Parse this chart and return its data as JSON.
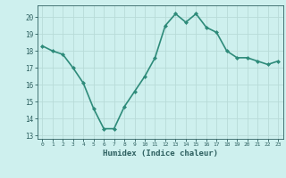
{
  "x": [
    0,
    1,
    2,
    3,
    4,
    5,
    6,
    7,
    8,
    9,
    10,
    11,
    12,
    13,
    14,
    15,
    16,
    17,
    18,
    19,
    20,
    21,
    22,
    23
  ],
  "y": [
    18.3,
    18.0,
    17.8,
    17.0,
    16.1,
    14.6,
    13.4,
    13.4,
    14.7,
    15.6,
    16.5,
    17.6,
    19.5,
    20.2,
    19.7,
    20.2,
    19.4,
    19.1,
    18.0,
    17.6,
    17.6,
    17.4,
    17.2,
    17.4
  ],
  "line_color": "#2e8b7a",
  "marker": "D",
  "marker_size": 2.0,
  "bg_color": "#cef0ee",
  "grid_color": "#b8dbd8",
  "xlabel": "Humidex (Indice chaleur)",
  "ylim": [
    12.8,
    20.7
  ],
  "yticks": [
    13,
    14,
    15,
    16,
    17,
    18,
    19,
    20
  ],
  "xticks": [
    0,
    1,
    2,
    3,
    4,
    5,
    6,
    7,
    8,
    9,
    10,
    11,
    12,
    13,
    14,
    15,
    16,
    17,
    18,
    19,
    20,
    21,
    22,
    23
  ],
  "font_color": "#2e6060",
  "linewidth": 1.2
}
